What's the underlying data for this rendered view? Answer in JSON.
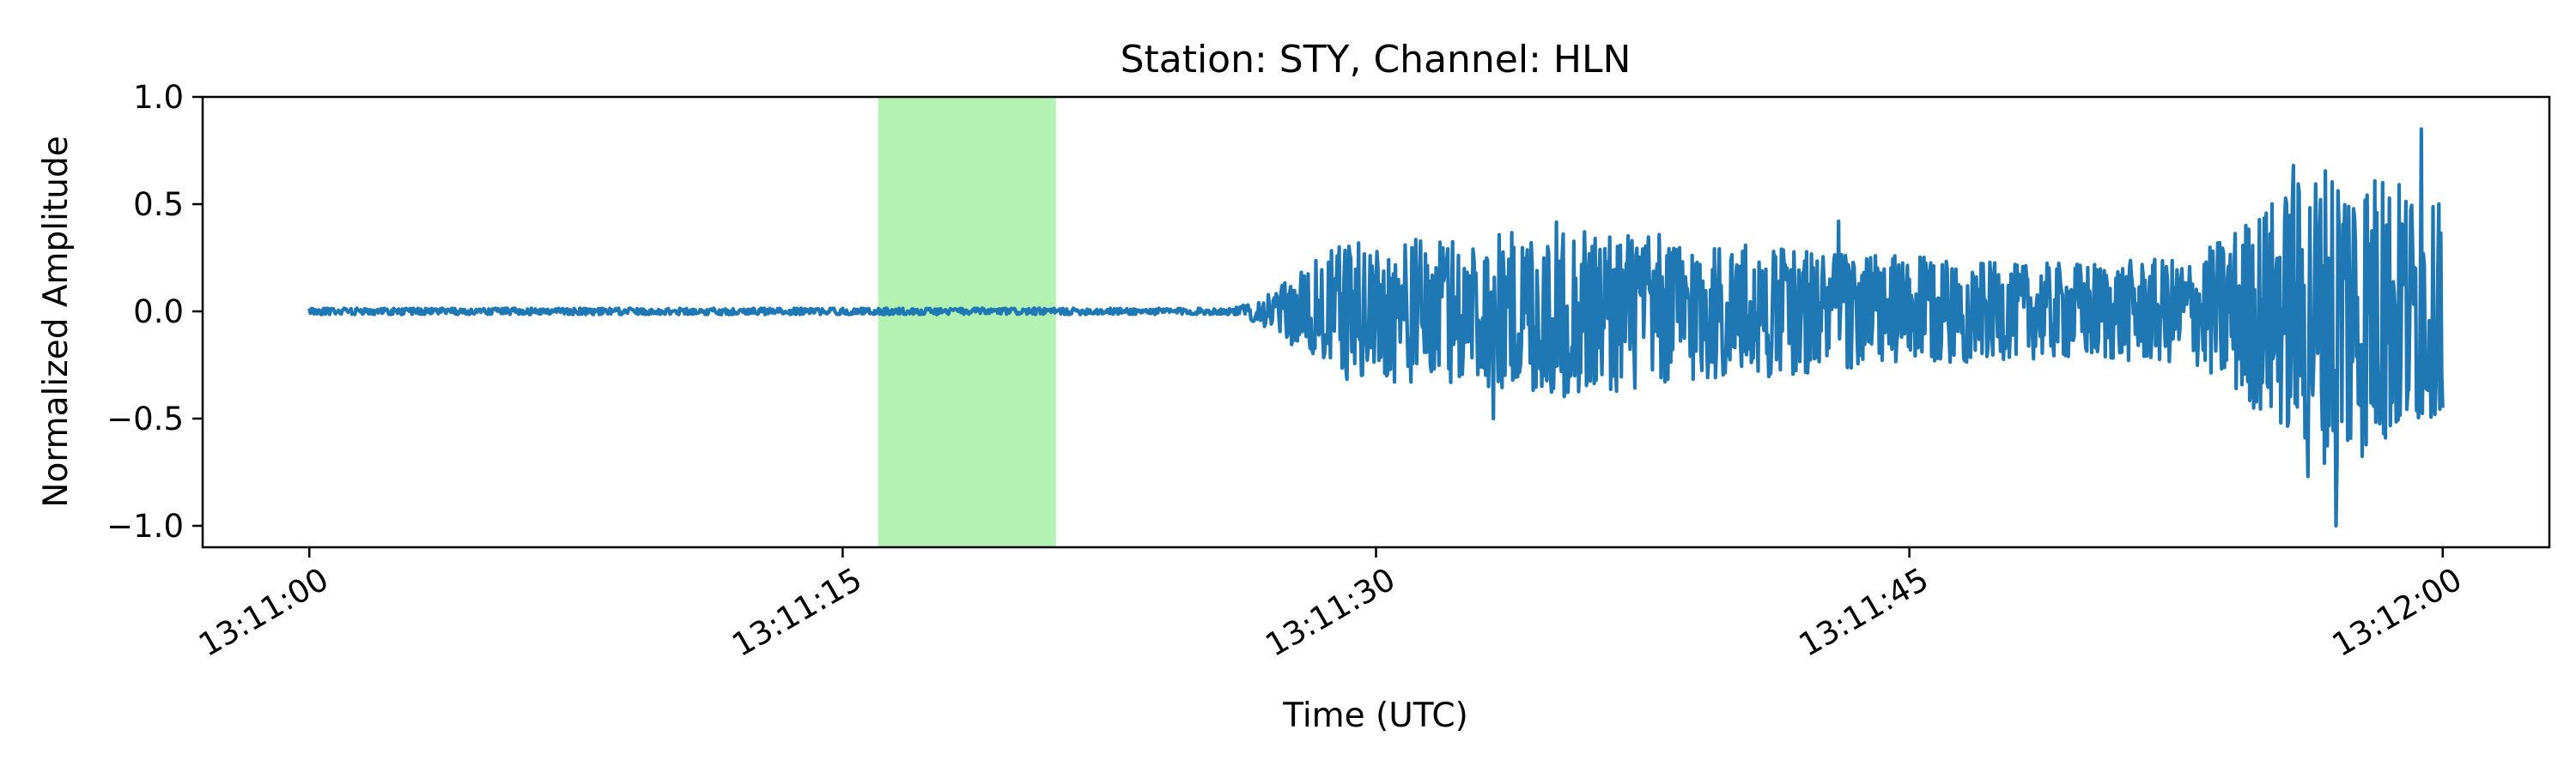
{
  "chart_data": {
    "type": "line",
    "title": "Station: STY, Channel: HLN",
    "xlabel": "Time (UTC)",
    "ylabel": "Normalized Amplitude",
    "xlim": [
      "13:10:57",
      "13:12:03"
    ],
    "ylim": [
      -1.1,
      1.0
    ],
    "x_ticks": [
      "13:11:00",
      "13:11:15",
      "13:11:30",
      "13:11:45",
      "13:12:00"
    ],
    "y_ticks": [
      {
        "value": 1.0,
        "label": "1.0"
      },
      {
        "value": 0.5,
        "label": "0.5"
      },
      {
        "value": 0.0,
        "label": "0.0"
      },
      {
        "value": -0.5,
        "label": "−0.5"
      },
      {
        "value": -1.0,
        "label": "−1.0"
      }
    ],
    "highlight_span": {
      "start": "13:11:16",
      "end": "13:11:21",
      "color": "#b3f2b3"
    },
    "series": [
      {
        "color": "#1f77b4",
        "start": "13:11:00",
        "end": "13:12:00",
        "envelope": [
          [
            "13:11:00",
            0.015
          ],
          [
            "13:11:26",
            0.015
          ],
          [
            "13:11:27",
            0.08
          ],
          [
            "13:11:29",
            0.32
          ],
          [
            "13:11:33",
            0.35
          ],
          [
            "13:11:35",
            0.42
          ],
          [
            "13:11:40",
            0.32
          ],
          [
            "13:11:48",
            0.22
          ],
          [
            "13:11:53",
            0.25
          ],
          [
            "13:11:55",
            0.5
          ],
          [
            "13:11:57",
            0.75
          ],
          [
            "13:11:59",
            0.6
          ],
          [
            "13:12:00",
            0.45
          ]
        ],
        "peaks": [
          [
            "13:11:33.3",
            0.5
          ],
          [
            "13:11:33.3",
            -0.5
          ],
          [
            "13:11:43.0",
            0.42
          ],
          [
            "13:11:55.8",
            0.68
          ],
          [
            "13:11:56.2",
            -0.77
          ],
          [
            "13:11:57.0",
            0.9
          ],
          [
            "13:11:57.0",
            -1.0
          ],
          [
            "13:11:58.3",
            0.6
          ],
          [
            "13:11:59.4",
            0.85
          ],
          [
            "13:11:59.9",
            0.5
          ],
          [
            "13:12:00.0",
            -0.45
          ]
        ]
      }
    ]
  }
}
